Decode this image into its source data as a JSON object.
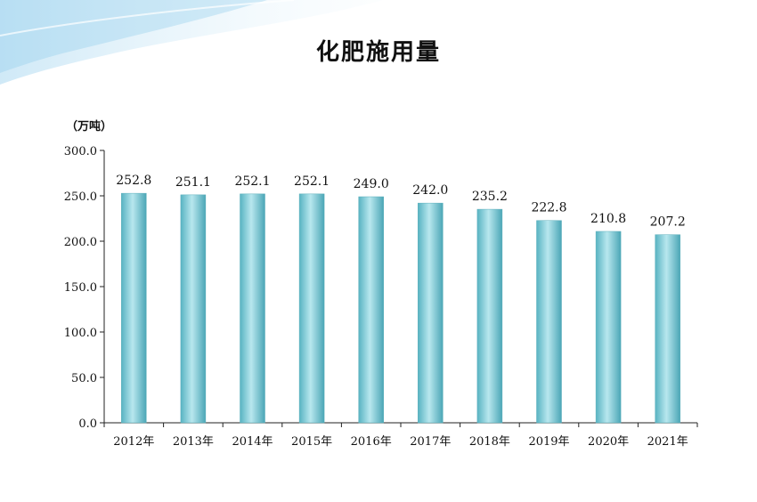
{
  "chart_data": {
    "type": "bar",
    "title": "化肥施用量",
    "unit_label": "（万吨）",
    "categories": [
      "2012年",
      "2013年",
      "2014年",
      "2015年",
      "2016年",
      "2017年",
      "2018年",
      "2019年",
      "2020年",
      "2021年"
    ],
    "values": [
      252.8,
      251.1,
      252.1,
      252.1,
      249.0,
      242.0,
      235.2,
      222.8,
      210.8,
      207.2
    ],
    "value_labels": [
      "252.8",
      "251.1",
      "252.1",
      "252.1",
      "249.0",
      "242.0",
      "235.2",
      "222.8",
      "210.8",
      "207.2"
    ],
    "y_ticks": [
      0,
      50,
      100,
      150,
      200,
      250,
      300
    ],
    "y_tick_labels": [
      "0.0",
      "50.0",
      "100.0",
      "150.0",
      "200.0",
      "250.0",
      "300.0"
    ],
    "ylim": [
      0,
      300
    ],
    "grid": false,
    "bar_color": "#7ecbd6"
  }
}
